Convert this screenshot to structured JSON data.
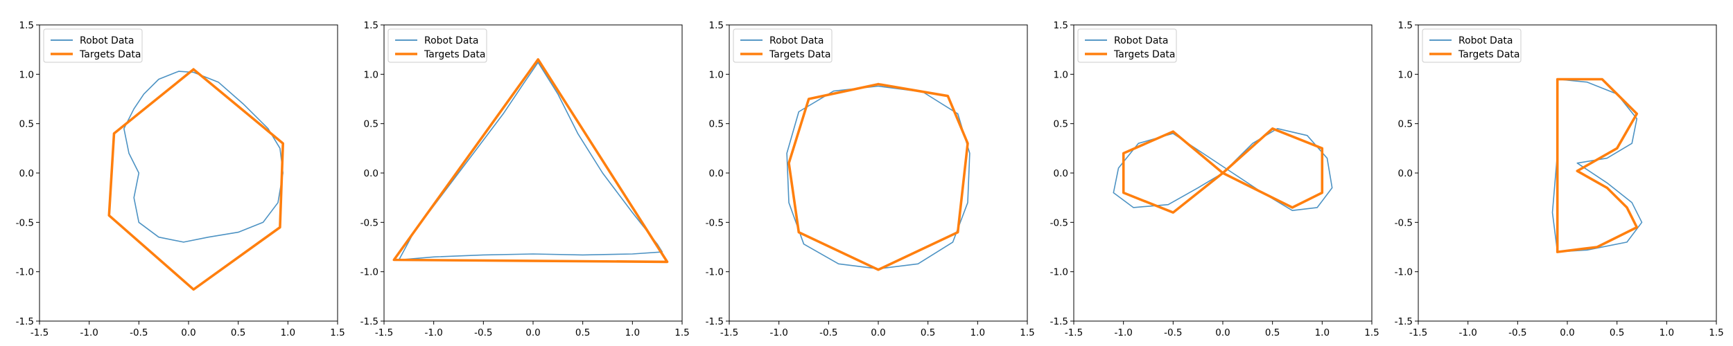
{
  "chart_data": [
    {
      "type": "line",
      "xlim": [
        -1.5,
        1.5
      ],
      "ylim": [
        -1.5,
        1.5
      ],
      "xticks": [
        "-1.5",
        "-1.0",
        "-0.5",
        "0.0",
        "0.5",
        "1.0",
        "1.5"
      ],
      "yticks": [
        "-1.5",
        "-1.0",
        "-0.5",
        "0.0",
        "0.5",
        "1.0",
        "1.5"
      ],
      "legend": {
        "position": "top-left",
        "entries": [
          "Robot Data",
          "Targets Data"
        ]
      },
      "series": [
        {
          "name": "Robot Data",
          "color": "#1f77b4",
          "x": [
            0.05,
            0.3,
            0.55,
            0.8,
            0.92,
            0.95,
            0.9,
            0.75,
            0.5,
            0.2,
            -0.05,
            -0.3,
            -0.5,
            -0.55,
            -0.5,
            -0.6,
            -0.65,
            -0.55,
            -0.45,
            -0.3,
            -0.1,
            0.05
          ],
          "y": [
            1.02,
            0.92,
            0.7,
            0.45,
            0.25,
            0.0,
            -0.3,
            -0.5,
            -0.6,
            -0.65,
            -0.7,
            -0.65,
            -0.5,
            -0.25,
            0.0,
            0.2,
            0.45,
            0.65,
            0.8,
            0.95,
            1.03,
            1.02
          ]
        },
        {
          "name": "Targets Data",
          "color": "#ff7f0e",
          "x": [
            0.05,
            0.95,
            0.92,
            0.05,
            -0.8,
            -0.75,
            0.05
          ],
          "y": [
            1.05,
            0.3,
            -0.55,
            -1.18,
            -0.43,
            0.4,
            1.05
          ]
        }
      ]
    },
    {
      "type": "line",
      "xlim": [
        -1.5,
        1.5
      ],
      "ylim": [
        -1.5,
        1.5
      ],
      "xticks": [
        "-1.5",
        "-1.0",
        "-0.5",
        "0.0",
        "0.5",
        "1.0",
        "1.5"
      ],
      "yticks": [
        "-1.5",
        "-1.0",
        "-0.5",
        "0.0",
        "0.5",
        "1.0",
        "1.5"
      ],
      "legend": {
        "position": "top-left",
        "entries": [
          "Robot Data",
          "Targets Data"
        ]
      },
      "series": [
        {
          "name": "Robot Data",
          "color": "#1f77b4",
          "x": [
            0.05,
            0.25,
            0.45,
            0.7,
            1.0,
            1.25,
            1.3,
            1.0,
            0.5,
            0.0,
            -0.5,
            -1.0,
            -1.35,
            -1.2,
            -0.9,
            -0.6,
            -0.3,
            -0.1,
            0.05
          ],
          "y": [
            1.12,
            0.8,
            0.4,
            0.0,
            -0.4,
            -0.72,
            -0.8,
            -0.82,
            -0.83,
            -0.82,
            -0.83,
            -0.85,
            -0.88,
            -0.6,
            -0.2,
            0.2,
            0.6,
            0.9,
            1.12
          ]
        },
        {
          "name": "Targets Data",
          "color": "#ff7f0e",
          "x": [
            0.05,
            1.35,
            -1.4,
            0.05
          ],
          "y": [
            1.15,
            -0.9,
            -0.88,
            1.15
          ]
        }
      ]
    },
    {
      "type": "line",
      "xlim": [
        -1.5,
        1.5
      ],
      "ylim": [
        -1.5,
        1.5
      ],
      "xticks": [
        "-1.5",
        "-1.0",
        "-0.5",
        "0.0",
        "0.5",
        "1.0",
        "1.5"
      ],
      "yticks": [
        "-1.5",
        "-1.0",
        "-0.5",
        "0.0",
        "0.5",
        "1.0",
        "1.5"
      ],
      "legend": {
        "position": "top-left",
        "entries": [
          "Robot Data",
          "Targets Data"
        ]
      },
      "series": [
        {
          "name": "Robot Data",
          "color": "#1f77b4",
          "x": [
            0.0,
            0.45,
            0.8,
            0.92,
            0.9,
            0.75,
            0.4,
            0.0,
            -0.4,
            -0.75,
            -0.9,
            -0.92,
            -0.8,
            -0.45,
            0.0
          ],
          "y": [
            0.88,
            0.82,
            0.6,
            0.2,
            -0.3,
            -0.7,
            -0.92,
            -0.97,
            -0.92,
            -0.72,
            -0.3,
            0.2,
            0.62,
            0.83,
            0.88
          ]
        },
        {
          "name": "Targets Data",
          "color": "#ff7f0e",
          "x": [
            0.0,
            0.7,
            0.9,
            0.8,
            0.0,
            -0.8,
            -0.9,
            -0.7,
            0.0
          ],
          "y": [
            0.9,
            0.78,
            0.3,
            -0.6,
            -0.98,
            -0.6,
            0.1,
            0.75,
            0.9
          ]
        }
      ]
    },
    {
      "type": "line",
      "xlim": [
        -1.5,
        1.5
      ],
      "ylim": [
        -1.5,
        1.5
      ],
      "xticks": [
        "-1.5",
        "-1.0",
        "-0.5",
        "0.0",
        "0.5",
        "1.0",
        "1.5"
      ],
      "yticks": [
        "-1.5",
        "-1.0",
        "-0.5",
        "0.0",
        "0.5",
        "1.0",
        "1.5"
      ],
      "legend": {
        "position": "top-left",
        "entries": [
          "Robot Data",
          "Targets Data"
        ]
      },
      "series": [
        {
          "name": "Robot Data",
          "color": "#1f77b4",
          "x": [
            0.0,
            0.3,
            0.55,
            0.85,
            1.05,
            1.1,
            0.95,
            0.7,
            0.4,
            0.1,
            -0.2,
            -0.5,
            -0.85,
            -1.05,
            -1.1,
            -0.9,
            -0.55,
            -0.25,
            0.0
          ],
          "y": [
            0.0,
            0.3,
            0.45,
            0.38,
            0.15,
            -0.15,
            -0.35,
            -0.38,
            -0.2,
            0.0,
            0.2,
            0.4,
            0.3,
            0.05,
            -0.2,
            -0.35,
            -0.32,
            -0.15,
            0.0
          ]
        },
        {
          "name": "Targets Data",
          "color": "#ff7f0e",
          "x": [
            0.0,
            0.5,
            1.0,
            1.0,
            0.7,
            0.0,
            -0.5,
            -1.0,
            -1.0,
            -0.5,
            0.0
          ],
          "y": [
            0.0,
            0.45,
            0.25,
            -0.2,
            -0.35,
            0.0,
            0.42,
            0.2,
            -0.2,
            -0.4,
            0.0
          ]
        }
      ]
    },
    {
      "type": "line",
      "xlim": [
        -1.5,
        1.5
      ],
      "ylim": [
        -1.5,
        1.5
      ],
      "xticks": [
        "-1.5",
        "-1.0",
        "-0.5",
        "0.0",
        "0.5",
        "1.0",
        "1.5"
      ],
      "yticks": [
        "-1.5",
        "-1.0",
        "-0.5",
        "0.0",
        "0.5",
        "1.0",
        "1.5"
      ],
      "legend": {
        "position": "top-left",
        "entries": [
          "Robot Data",
          "Targets Data"
        ]
      },
      "series": [
        {
          "name": "Robot Data",
          "color": "#1f77b4",
          "x": [
            -0.1,
            0.2,
            0.5,
            0.7,
            0.65,
            0.4,
            0.1,
            0.4,
            0.65,
            0.75,
            0.6,
            0.2,
            -0.1,
            -0.15,
            -0.1,
            -0.1
          ],
          "y": [
            0.95,
            0.92,
            0.8,
            0.55,
            0.3,
            0.15,
            0.1,
            -0.1,
            -0.3,
            -0.5,
            -0.7,
            -0.78,
            -0.8,
            -0.4,
            0.2,
            0.95
          ]
        },
        {
          "name": "Targets Data",
          "color": "#ff7f0e",
          "x": [
            -0.1,
            0.35,
            0.7,
            0.5,
            0.1,
            0.4,
            0.6,
            0.7,
            0.3,
            -0.1,
            -0.1
          ],
          "y": [
            0.95,
            0.95,
            0.6,
            0.25,
            0.02,
            -0.15,
            -0.35,
            -0.55,
            -0.75,
            -0.8,
            0.95
          ]
        }
      ]
    }
  ]
}
